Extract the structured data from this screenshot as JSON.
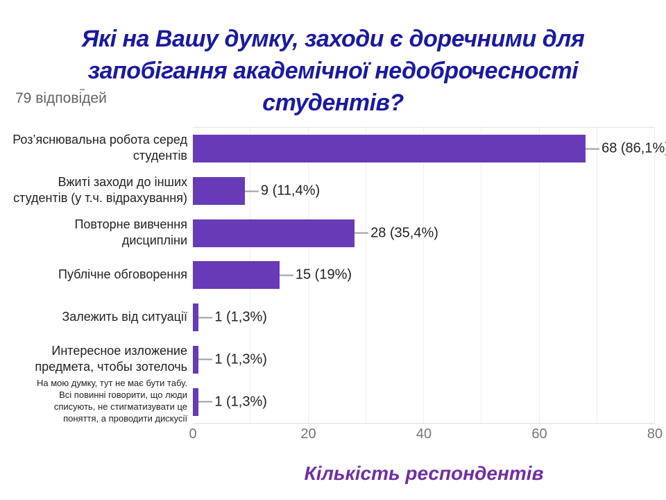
{
  "slide": {
    "title_lines": [
      "Які на Вашу думку, заходи є доречними для",
      "запобігання академічної недоброчесності",
      "студентів?"
    ],
    "responses_note": "79 відповідей",
    "axis_title": "Кількість респондентів"
  },
  "colors": {
    "bar": "#673AB7",
    "title": "#1A1A9E",
    "axis_title": "#7030A0",
    "value_label": "#212121",
    "category_label": "#212121",
    "tick_label": "#757575",
    "connector": "#9E9E9E",
    "responses_note": "#5F6368"
  },
  "chart_data": {
    "type": "bar",
    "orientation": "horizontal",
    "title": "Які на Вашу думку, заходи є доречними для запобігання академічної недоброчесності студентів?",
    "subtitle": "79 відповідей",
    "xlabel": "Кількість респондентів",
    "ylabel": "",
    "xlim": [
      0,
      80
    ],
    "xticks": [
      0,
      20,
      40,
      60,
      80
    ],
    "grid": {
      "vertical_every": 10,
      "horizontal": false
    },
    "legend": "none",
    "categories": [
      "Роз’яснювальна робота серед студентів",
      "Вжиті заходи до інших студентів (у т.ч. відрахування)",
      "Повторне вивчення дисципліни",
      "Публічне обговорення",
      "Залежить від ситуації",
      "Интересное изложение предмета, чтобы зотелочь",
      "На мою думку, тут не має бути табу. Всі повинні говорити, що люди списують, не стигматизувати це поняття, а проводити дискусії"
    ],
    "category_display": [
      "Роз’яснювальна робота серед\nстудентів",
      "Вжиті заходи до інших\nстудентів (у т.ч. відрахування)",
      "Повторне вивчення\nдисципліни",
      "Публічне обговорення",
      "Залежить від ситуації",
      "Интересное изложение\nпредмета, чтобы зотелочь",
      "На мою думку, тут не має бути табу.\nВсі повинні говорити, що люди\nсписують, не стигматизувати це\nпоняття, а проводити дискусії"
    ],
    "values": [
      68,
      9,
      28,
      15,
      1,
      1,
      1
    ],
    "percentages": [
      86.1,
      11.4,
      35.4,
      19,
      1.3,
      1.3,
      1.3
    ],
    "value_labels": [
      "68 (86,1%)",
      "9 (11,4%)",
      "28 (35,4%)",
      "15 (19%)",
      "1 (1,3%)",
      "1 (1,3%)",
      "1 (1,3%)"
    ]
  }
}
